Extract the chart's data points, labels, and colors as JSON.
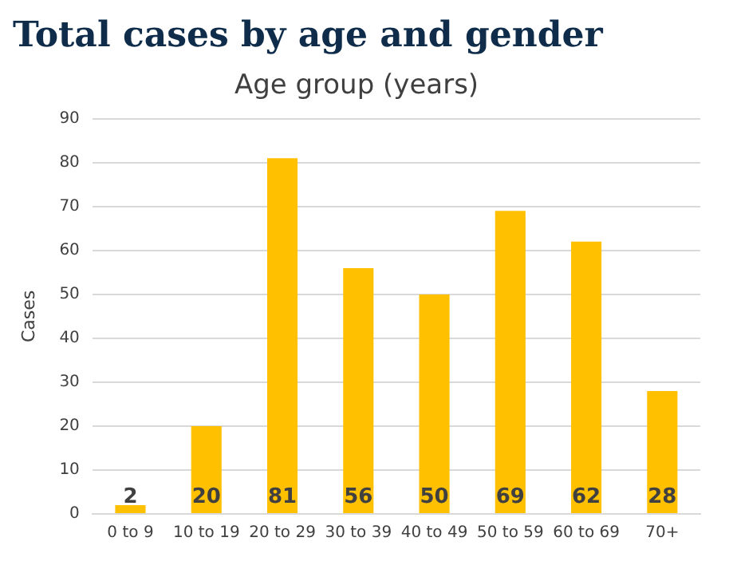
{
  "chart_data": {
    "type": "bar",
    "title": "Total cases by age and gender",
    "subtitle": "Age group (years)",
    "ylabel": "Cases",
    "categories": [
      "0 to 9",
      "10 to 19",
      "20 to 29",
      "30 to 39",
      "40 to 49",
      "50 to 59",
      "60 to 69",
      "70+"
    ],
    "values": [
      2,
      20,
      81,
      56,
      50,
      69,
      62,
      28
    ],
    "color": "#ffc000",
    "ylim": [
      0,
      90
    ],
    "yticks": [
      0,
      10,
      20,
      30,
      40,
      50,
      60,
      70,
      80,
      90
    ],
    "grid": "y",
    "data_labels": true
  }
}
